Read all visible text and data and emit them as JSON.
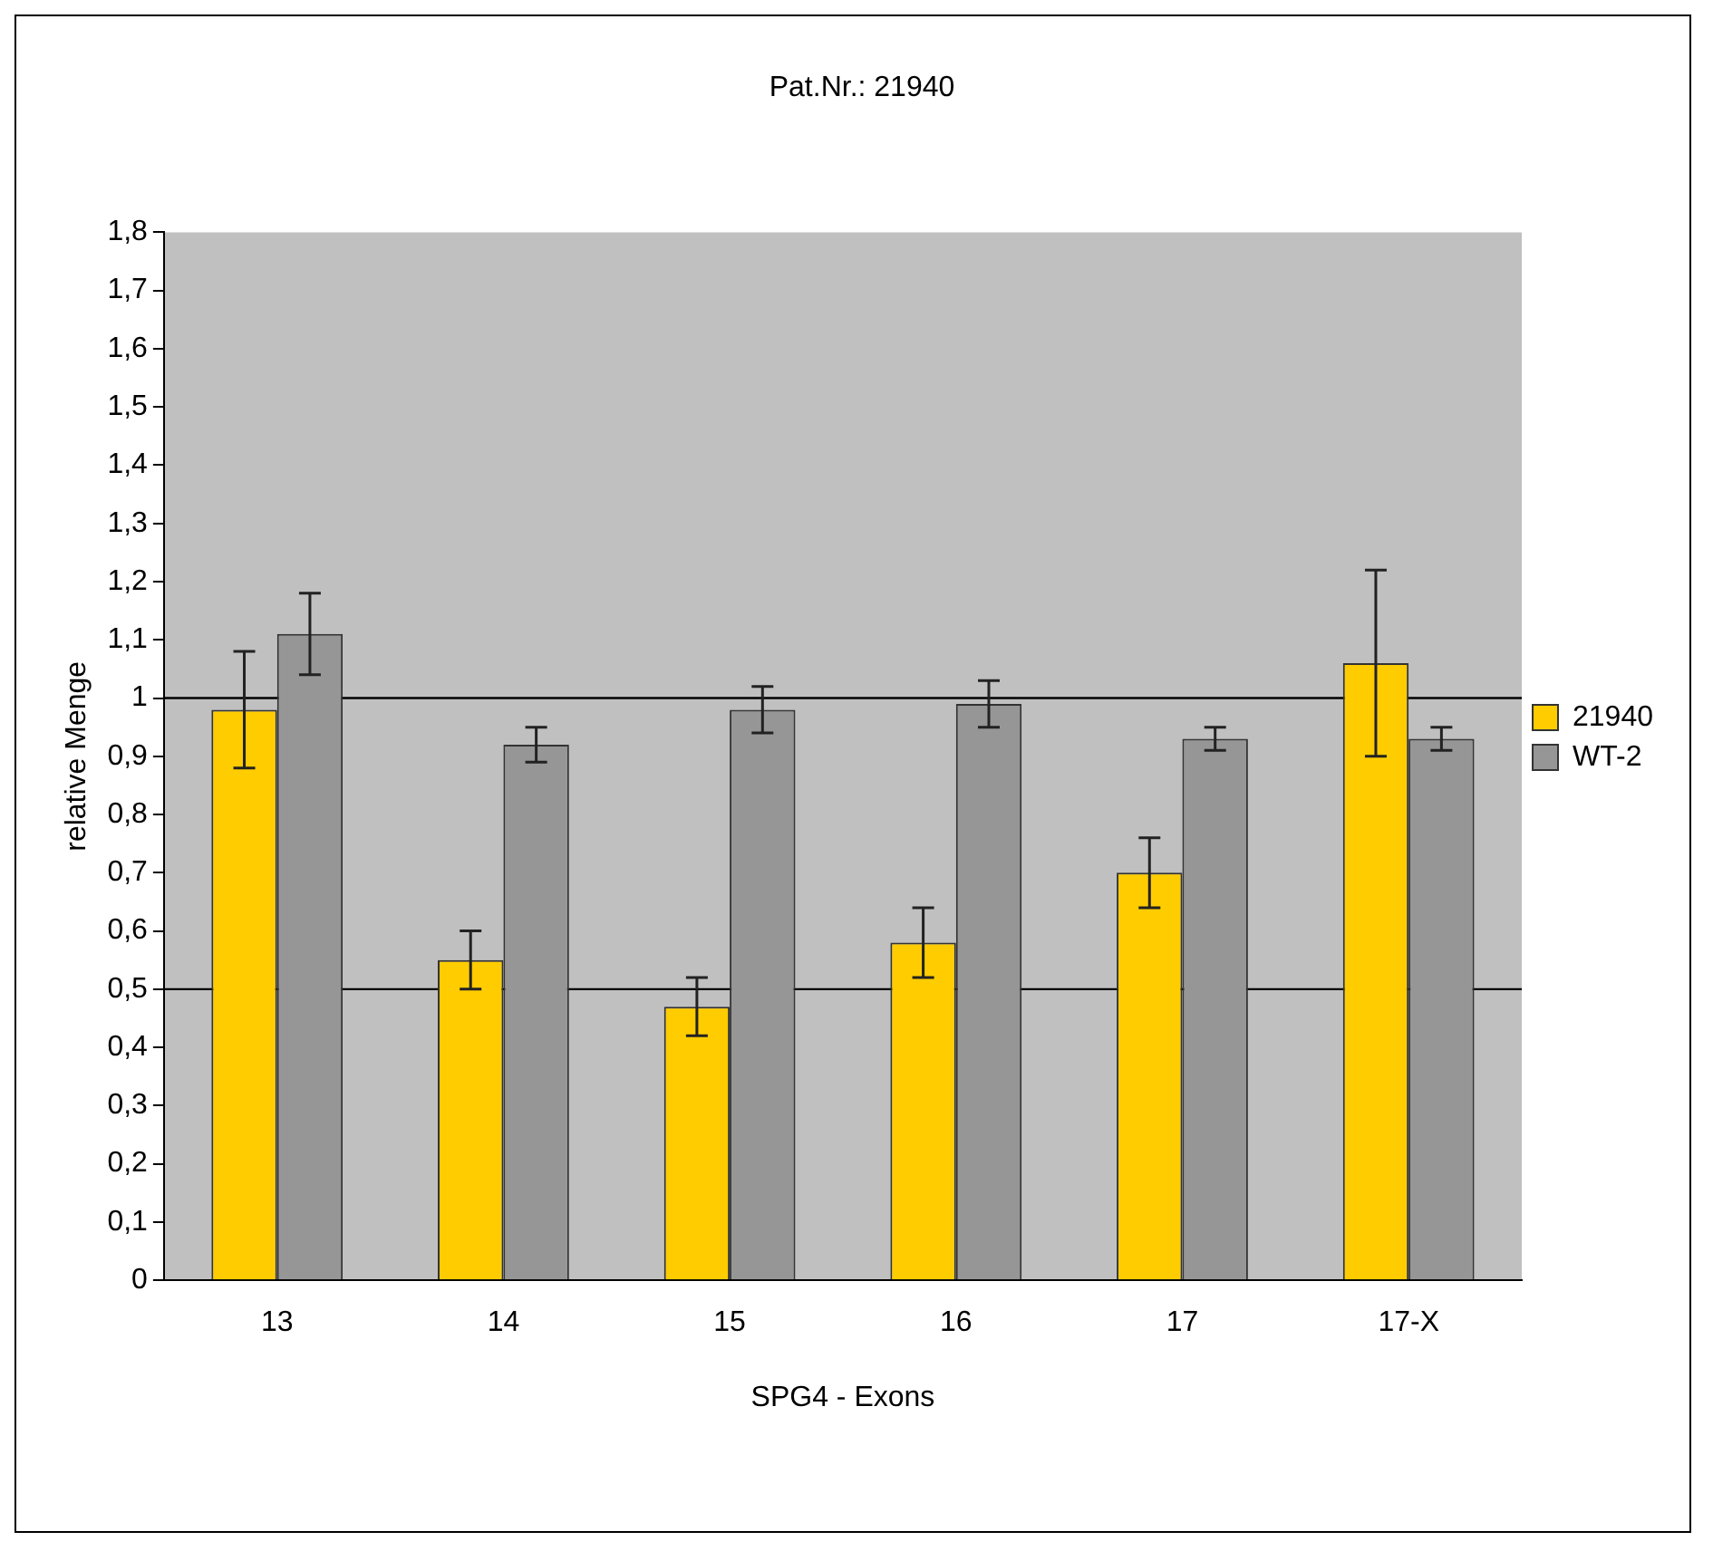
{
  "chart_data": {
    "type": "bar",
    "title": "Pat.Nr.: 21940",
    "xlabel": "SPG4 - Exons",
    "ylabel": "relative Menge",
    "categories": [
      "13",
      "14",
      "15",
      "16",
      "17",
      "17-X"
    ],
    "series": [
      {
        "name": "21940",
        "color": "#ffcc00",
        "values": [
          0.98,
          0.55,
          0.47,
          0.58,
          0.7,
          1.06
        ],
        "errors": [
          0.1,
          0.05,
          0.05,
          0.06,
          0.06,
          0.16
        ]
      },
      {
        "name": "WT-2",
        "color": "#969696",
        "values": [
          1.11,
          0.92,
          0.98,
          0.99,
          0.93,
          0.93
        ],
        "errors": [
          0.07,
          0.03,
          0.04,
          0.04,
          0.02,
          0.02
        ]
      }
    ],
    "ylim": [
      0,
      1.8
    ],
    "yticks": [
      0,
      {
        "value": 0.1,
        "label": "0,1"
      },
      {
        "value": 0.2,
        "label": "0,2"
      },
      {
        "value": 0.3,
        "label": "0,3"
      },
      {
        "value": 0.4,
        "label": "0,4"
      },
      {
        "value": 0.5,
        "label": "0,5"
      },
      {
        "value": 0.6,
        "label": "0,6"
      },
      {
        "value": 0.7,
        "label": "0,7"
      },
      {
        "value": 0.8,
        "label": "0,8"
      },
      {
        "value": 0.9,
        "label": "0,9"
      },
      1,
      {
        "value": 1.1,
        "label": "1,1"
      },
      {
        "value": 1.2,
        "label": "1,2"
      },
      {
        "value": 1.3,
        "label": "1,3"
      },
      {
        "value": 1.4,
        "label": "1,4"
      },
      {
        "value": 1.5,
        "label": "1,5"
      },
      {
        "value": 1.6,
        "label": "1,6"
      },
      {
        "value": 1.7,
        "label": "1,7"
      },
      {
        "value": 1.8,
        "label": "1,8"
      }
    ],
    "ref_lines": [
      {
        "axis": "y",
        "value": 1,
        "color": "#000000"
      },
      {
        "axis": "y",
        "value": 0.5,
        "color": "#000000"
      }
    ],
    "grid": false,
    "legend": "right"
  }
}
